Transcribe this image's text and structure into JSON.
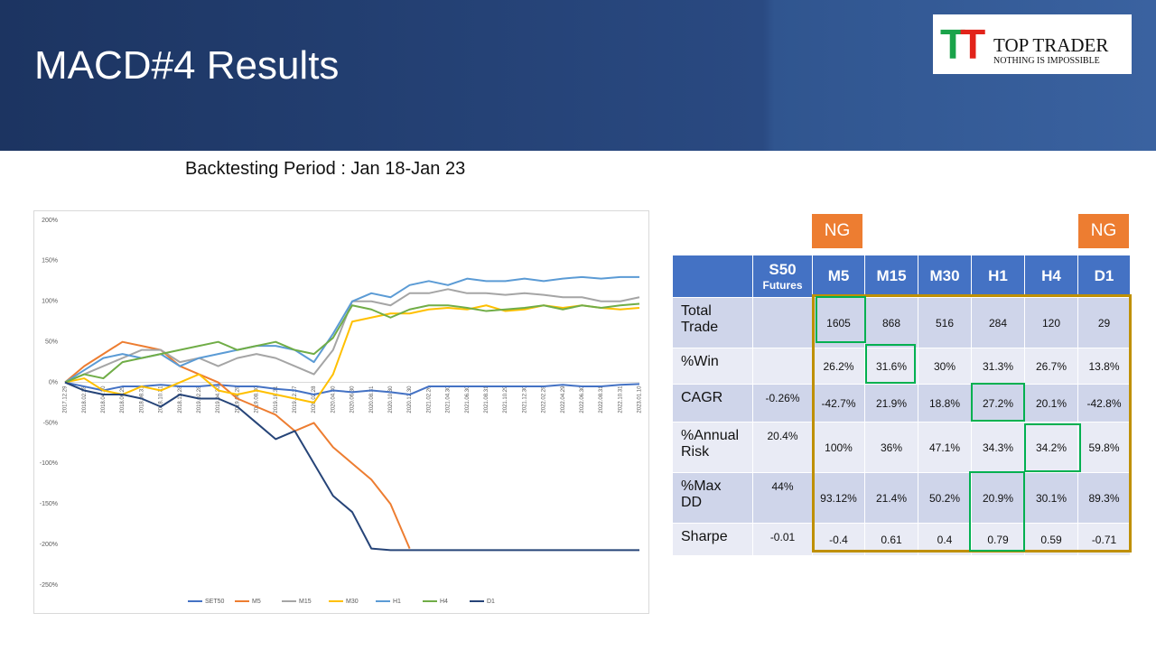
{
  "header": {
    "title": "MACD#4 Results"
  },
  "logo": {
    "brand": "TOP TRADER",
    "tagline": "NOTHING IS IMPOSSIBLE"
  },
  "subtitle": "Backtesting Period : Jan 18-Jan 23",
  "chart_data": {
    "type": "line",
    "categories": [
      "2017.12.29",
      "2018.02.28",
      "2018.04.30",
      "2018.06.29",
      "2018.08.31",
      "2018.10.31",
      "2018.12.28",
      "2019.02.28",
      "2019.04.30",
      "2019.06.28",
      "2019.08.30",
      "2019.10.31",
      "2019.12.27",
      "2020.02.28",
      "2020.04.30",
      "2020.06.30",
      "2020.08.31",
      "2020.10.30",
      "2020.12.30",
      "2021.02.26",
      "2021.04.30",
      "2021.06.30",
      "2021.08.31",
      "2021.10.29",
      "2021.12.30",
      "2022.02.28",
      "2022.04.29",
      "2022.06.30",
      "2022.08.31",
      "2022.10.31",
      "2023.01.10"
    ],
    "series": [
      {
        "name": "SET50",
        "color": "#4472c4",
        "values": [
          0,
          -5,
          -10,
          -5,
          -5,
          -3,
          -5,
          -5,
          -3,
          -5,
          -5,
          -8,
          -10,
          -15,
          -10,
          -12,
          -10,
          -12,
          -15,
          -5,
          -5,
          -5,
          -5,
          -5,
          -5,
          -5,
          -3,
          -5,
          -5,
          -3,
          -2
        ]
      },
      {
        "name": "M5",
        "color": "#ed7d31",
        "values": [
          0,
          20,
          35,
          50,
          45,
          40,
          20,
          10,
          0,
          -20,
          -30,
          -40,
          -60,
          -50,
          -80,
          -100,
          -120,
          -150,
          -205,
          null,
          null,
          null,
          null,
          null,
          null,
          null,
          null,
          null,
          null,
          null,
          null
        ]
      },
      {
        "name": "M15",
        "color": "#a5a5a5",
        "values": [
          0,
          10,
          20,
          30,
          40,
          40,
          25,
          30,
          20,
          30,
          35,
          30,
          20,
          10,
          40,
          100,
          100,
          95,
          110,
          110,
          115,
          110,
          110,
          108,
          110,
          108,
          105,
          105,
          100,
          100,
          105
        ]
      },
      {
        "name": "M30",
        "color": "#ffc000",
        "values": [
          0,
          5,
          -10,
          -15,
          -5,
          -10,
          0,
          10,
          -10,
          -15,
          -10,
          -15,
          -20,
          -25,
          10,
          75,
          80,
          85,
          85,
          90,
          92,
          90,
          95,
          88,
          90,
          95,
          92,
          95,
          92,
          90,
          92
        ]
      },
      {
        "name": "H1",
        "color": "#5b9bd5",
        "values": [
          0,
          15,
          30,
          35,
          30,
          35,
          20,
          30,
          35,
          40,
          45,
          45,
          40,
          25,
          60,
          100,
          110,
          105,
          120,
          125,
          120,
          128,
          125,
          125,
          128,
          125,
          128,
          130,
          128,
          130,
          130
        ]
      },
      {
        "name": "H4",
        "color": "#70ad47",
        "values": [
          0,
          10,
          5,
          25,
          30,
          35,
          40,
          45,
          50,
          40,
          45,
          50,
          40,
          35,
          55,
          95,
          90,
          80,
          90,
          95,
          95,
          92,
          88,
          90,
          92,
          95,
          90,
          95,
          92,
          95,
          97
        ]
      },
      {
        "name": "D1",
        "color": "#264478",
        "values": [
          0,
          -10,
          -15,
          -15,
          -20,
          -30,
          -15,
          -20,
          -20,
          -30,
          -50,
          -70,
          -60,
          -100,
          -140,
          -160,
          -205,
          -207,
          -207,
          -207,
          -207,
          -207,
          -207,
          -207,
          -207,
          -207,
          -207,
          -207,
          -207,
          -207,
          -207
        ]
      }
    ],
    "ylim": [
      -250,
      200
    ],
    "yticks": [
      {
        "value": -250,
        "label": "-250%"
      },
      {
        "value": -200,
        "label": "-200%"
      },
      {
        "value": -150,
        "label": "-150%"
      },
      {
        "value": -100,
        "label": "-100%"
      },
      {
        "value": -50,
        "label": "-50%"
      },
      {
        "value": 0,
        "label": "0%"
      },
      {
        "value": 50,
        "label": "50%"
      },
      {
        "value": 100,
        "label": "100%"
      },
      {
        "value": 150,
        "label": "150%"
      },
      {
        "value": 200,
        "label": "200%"
      }
    ],
    "grid": false,
    "legend": "bottom"
  },
  "badges": [
    "NG",
    "NG"
  ],
  "table": {
    "columns": [
      {
        "name": "S50",
        "note": "Futures"
      },
      {
        "name": "M5"
      },
      {
        "name": "M15"
      },
      {
        "name": "M30"
      },
      {
        "name": "H1"
      },
      {
        "name": "H4"
      },
      {
        "name": "D1"
      }
    ],
    "rows": [
      {
        "label": "Total Trade",
        "cells": [
          null,
          "1605",
          "868",
          "516",
          "284",
          "120",
          "29"
        ]
      },
      {
        "label": "%Win",
        "cells": [
          null,
          "26.2%",
          "31.6%",
          "30%",
          "31.3%",
          "26.7%",
          "13.8%"
        ]
      },
      {
        "label": "CAGR",
        "cells": [
          "-0.26%",
          "-42.7%",
          "21.9%",
          "18.8%",
          "27.2%",
          "20.1%",
          "-42.8%"
        ]
      },
      {
        "label": "%Annual Risk",
        "cells": [
          "20.4%",
          "100%",
          "36%",
          "47.1%",
          "34.3%",
          "34.2%",
          "59.8%"
        ]
      },
      {
        "label": "%Max DD",
        "cells": [
          "44%",
          "93.12%",
          "21.4%",
          "50.2%",
          "20.9%",
          "30.1%",
          "89.3%"
        ]
      },
      {
        "label": "Sharpe",
        "cells": [
          "-0.01",
          "-0.4",
          "0.61",
          "0.4",
          "0.79",
          "0.59",
          "-0.71"
        ]
      }
    ]
  }
}
